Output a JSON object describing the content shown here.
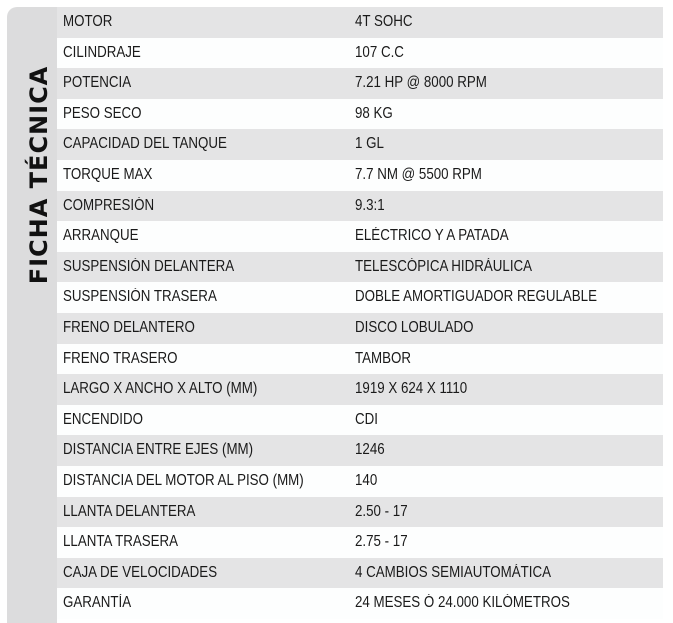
{
  "title": "FICHA TÉCNICA",
  "specs": [
    {
      "label": "MOTOR",
      "value": "4T SOHC"
    },
    {
      "label": "CILINDRAJE",
      "value": "107 C.C"
    },
    {
      "label": "POTENCIA",
      "value": "7.21 HP @ 8000 RPM"
    },
    {
      "label": "PESO SECO",
      "value": "98 KG"
    },
    {
      "label": "CAPACIDAD DEL TANQUE",
      "value": "1 GL"
    },
    {
      "label": "TORQUE MAX",
      "value": "7.7 NM @ 5500 RPM"
    },
    {
      "label": "COMPRESIÓN",
      "value": "9.3:1"
    },
    {
      "label": "ARRANQUE",
      "value": "ELÉCTRICO Y A PATADA"
    },
    {
      "label": "SUSPENSIÓN DELANTERA",
      "value": "TELESCÓPICA HIDRÁULICA"
    },
    {
      "label": "SUSPENSIÓN TRASERA",
      "value": "DOBLE AMORTIGUADOR REGULABLE"
    },
    {
      "label": "FRENO DELANTERO",
      "value": "DISCO LOBULADO"
    },
    {
      "label": "FRENO TRASERO",
      "value": "TAMBOR"
    },
    {
      "label": "LARGO X ANCHO X ALTO (MM)",
      "value": "1919 X 624 X 1110"
    },
    {
      "label": "ENCENDIDO",
      "value": "CDI"
    },
    {
      "label": "DISTANCIA ENTRE EJES (MM)",
      "value": "1246"
    },
    {
      "label": "DISTANCIA DEL MOTOR AL PISO (MM)",
      "value": "140"
    },
    {
      "label": "LLANTA DELANTERA",
      "value": "2.50 - 17"
    },
    {
      "label": "LLANTA TRASERA",
      "value": "2.75 - 17"
    },
    {
      "label": "CAJA DE VELOCIDADES",
      "value": "4 CAMBIOS SEMIAUTOMÁTICA"
    },
    {
      "label": "GARANTÍA",
      "value": "24 MESES Ó 24.000 KILÓMETROS"
    }
  ]
}
